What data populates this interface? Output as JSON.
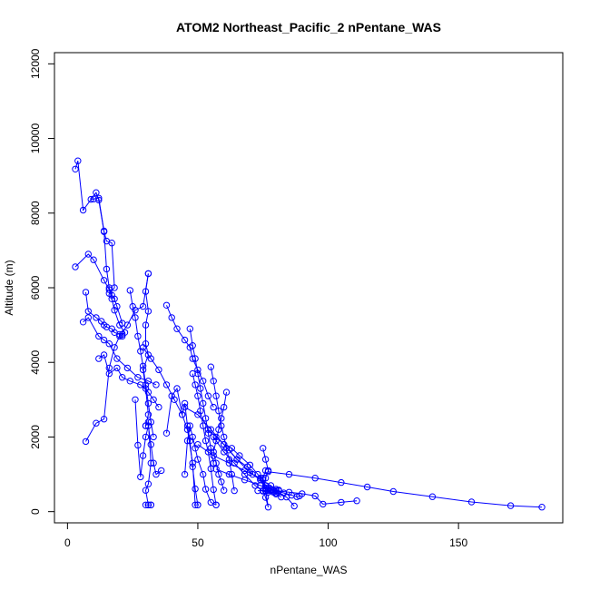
{
  "chart_data": {
    "type": "line",
    "title": "ATOM2 Northeast_Pacific_2 nPentane_WAS",
    "xlabel": "nPentane_WAS",
    "ylabel": "Altitude (m)",
    "xlim": [
      -5,
      190
    ],
    "ylim": [
      -300,
      12300
    ],
    "xticks": [
      0,
      50,
      100,
      150
    ],
    "yticks": [
      0,
      2000,
      4000,
      6000,
      8000,
      10000,
      12000
    ],
    "grid": false,
    "series_color": "#0000ff",
    "profiles": [
      {
        "x": [
          3,
          4,
          6,
          11,
          12,
          14,
          15,
          17,
          18,
          16
        ],
        "y": [
          9180,
          9400,
          8080,
          8550,
          8350,
          7500,
          7250,
          7200,
          6000,
          5850
        ]
      },
      {
        "x": [
          9,
          10,
          12,
          14,
          15,
          16,
          17,
          18,
          19,
          21
        ],
        "y": [
          8370,
          8380,
          8400,
          7520,
          6500,
          6000,
          5800,
          5700,
          5500,
          5050
        ]
      },
      {
        "x": [
          3,
          8,
          10,
          14,
          16,
          17,
          18,
          20,
          22,
          21
        ],
        "y": [
          6560,
          6900,
          6750,
          6200,
          5950,
          5700,
          5400,
          5000,
          4800,
          4750
        ]
      },
      {
        "x": [
          7,
          8,
          11,
          13,
          14,
          15,
          17,
          18,
          20,
          21
        ],
        "y": [
          5880,
          5370,
          5200,
          5100,
          5000,
          4950,
          4900,
          4800,
          4750,
          4700
        ]
      },
      {
        "x": [
          6,
          8,
          12,
          14,
          16,
          19,
          23,
          27,
          31,
          34
        ],
        "y": [
          5080,
          5200,
          4700,
          4600,
          4500,
          4100,
          3850,
          3600,
          3500,
          3400
        ]
      },
      {
        "x": [
          12,
          14,
          16,
          19,
          21,
          24,
          28,
          31,
          33,
          35
        ],
        "y": [
          4100,
          4200,
          3700,
          3850,
          3600,
          3500,
          3400,
          3200,
          3000,
          2800
        ]
      },
      {
        "x": [
          7,
          11,
          14,
          16,
          18,
          20,
          23,
          26,
          29,
          31
        ],
        "y": [
          1880,
          2370,
          2480,
          3850,
          4400,
          4700,
          5000,
          5400,
          5500,
          6380
        ]
      },
      {
        "x": [
          31,
          30,
          31,
          30,
          30,
          31,
          29,
          30,
          31,
          30
        ],
        "y": [
          6380,
          5900,
          5370,
          5000,
          4500,
          4200,
          3800,
          3300,
          2600,
          2300
        ]
      },
      {
        "x": [
          30,
          31,
          32,
          31,
          30,
          31,
          32,
          30,
          31,
          32
        ],
        "y": [
          2300,
          2400,
          1300,
          740,
          570,
          180,
          180,
          180,
          180,
          180
        ]
      },
      {
        "x": [
          24,
          25,
          26,
          27,
          28,
          29,
          30,
          31,
          32,
          33
        ],
        "y": [
          5930,
          5500,
          5200,
          4700,
          4300,
          3900,
          3400,
          2900,
          2400,
          2000
        ]
      },
      {
        "x": [
          26,
          27,
          28,
          29,
          30,
          31,
          32,
          33,
          34,
          36
        ],
        "y": [
          3000,
          1780,
          930,
          1500,
          2000,
          2300,
          1800,
          1300,
          1000,
          1100
        ]
      },
      {
        "x": [
          38,
          40,
          42,
          45,
          47,
          48,
          50,
          52,
          54,
          56
        ],
        "y": [
          5530,
          5200,
          4900,
          4600,
          4400,
          4100,
          3800,
          3500,
          3100,
          2800
        ]
      },
      {
        "x": [
          38,
          40,
          42,
          44,
          45,
          46,
          47,
          48,
          49,
          50
        ],
        "y": [
          2100,
          3100,
          3300,
          2600,
          2900,
          2300,
          1900,
          1200,
          610,
          180
        ]
      },
      {
        "x": [
          47,
          48,
          49,
          50,
          51,
          52,
          53,
          54,
          55,
          56
        ],
        "y": [
          4900,
          4450,
          4100,
          3700,
          3300,
          2900,
          2500,
          2100,
          1700,
          1300
        ]
      },
      {
        "x": [
          48,
          49,
          50,
          51,
          52,
          53,
          54,
          55,
          56,
          57
        ],
        "y": [
          3700,
          3400,
          3100,
          2700,
          2300,
          1900,
          1600,
          1150,
          590,
          180
        ]
      },
      {
        "x": [
          55,
          56,
          57,
          58,
          59,
          60,
          61,
          62,
          63,
          64
        ],
        "y": [
          3880,
          3500,
          3100,
          2700,
          2300,
          2000,
          1700,
          1400,
          1000,
          560
        ]
      },
      {
        "x": [
          61,
          60,
          59,
          58,
          57,
          56,
          57,
          58,
          59,
          60
        ],
        "y": [
          3200,
          2800,
          2500,
          2200,
          1900,
          1600,
          1300,
          1000,
          800,
          570
        ]
      },
      {
        "x": [
          45,
          46,
          47,
          48,
          49,
          50,
          52,
          53,
          55,
          57
        ],
        "y": [
          1000,
          1900,
          2300,
          2000,
          1700,
          1400,
          1000,
          600,
          250,
          180
        ]
      },
      {
        "x": [
          54,
          57,
          60,
          63,
          66,
          70,
          73,
          75,
          76,
          77
        ],
        "y": [
          2200,
          2000,
          1800,
          1700,
          1500,
          1250,
          1000,
          850,
          700,
          560
        ]
      },
      {
        "x": [
          62,
          65,
          69,
          71,
          74,
          76,
          78,
          79,
          80,
          81
        ],
        "y": [
          1650,
          1400,
          1200,
          1000,
          850,
          700,
          600,
          550,
          560,
          580
        ]
      },
      {
        "x": [
          45,
          50,
          55,
          60,
          65,
          70,
          74,
          78,
          80,
          81
        ],
        "y": [
          2800,
          2600,
          2200,
          1800,
          1400,
          1050,
          850,
          700,
          600,
          560
        ]
      },
      {
        "x": [
          57,
          62,
          68,
          74,
          77,
          80,
          83,
          86,
          88,
          89
        ],
        "y": [
          1140,
          1000,
          850,
          700,
          620,
          560,
          500,
          440,
          400,
          420
        ]
      },
      {
        "x": [
          50,
          56,
          62,
          68,
          74,
          76,
          77,
          79,
          80,
          82
        ],
        "y": [
          1800,
          1500,
          1300,
          1100,
          900,
          640,
          560,
          520,
          470,
          390
        ]
      },
      {
        "x": [
          56,
          60,
          64,
          68,
          72,
          75,
          77,
          80,
          84,
          87
        ],
        "y": [
          2000,
          1600,
          1300,
          1000,
          700,
          550,
          520,
          500,
          390,
          150
        ]
      },
      {
        "x": [
          73,
          76,
          78,
          80,
          85,
          90,
          95,
          98,
          105,
          111
        ],
        "y": [
          560,
          560,
          570,
          560,
          520,
          480,
          420,
          200,
          250,
          290
        ]
      },
      {
        "x": [
          77,
          85,
          95,
          105,
          115,
          125,
          140,
          155,
          170,
          182
        ],
        "y": [
          1070,
          1000,
          900,
          780,
          660,
          540,
          400,
          260,
          160,
          120
        ]
      },
      {
        "x": [
          75,
          76,
          77,
          76,
          75,
          76,
          77,
          76,
          75,
          76
        ],
        "y": [
          1700,
          1400,
          1100,
          900,
          560,
          380,
          120,
          560,
          900,
          1100
        ]
      },
      {
        "x": [
          29,
          32,
          35,
          38,
          41,
          44,
          46,
          48,
          49,
          50
        ],
        "y": [
          4400,
          4100,
          3800,
          3400,
          3000,
          2600,
          2200,
          1300,
          180,
          180
        ]
      }
    ]
  }
}
